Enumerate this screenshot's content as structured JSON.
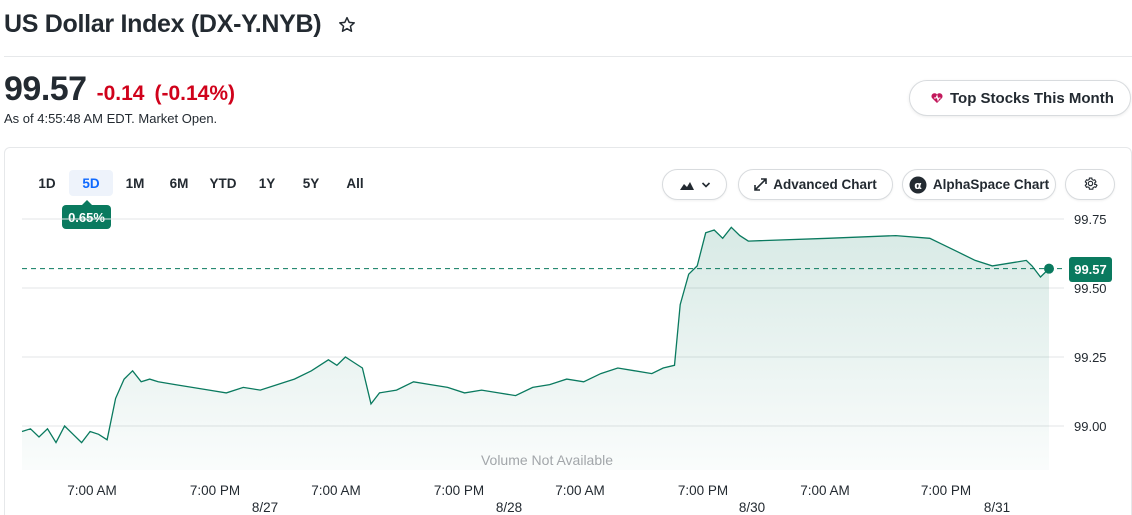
{
  "header": {
    "title": "US Dollar Index (DX-Y.NYB)",
    "watch_icon": "star-outline-icon"
  },
  "quote": {
    "price": "99.57",
    "change": "-0.14",
    "change_pct": "(-0.14%)",
    "as_of": "As of 4:55:48 AM EDT. Market Open.",
    "change_color": "#d0021b"
  },
  "promo": {
    "label": "Top Stocks This Month",
    "icon": "heart-spark-icon"
  },
  "chart_toolbar": {
    "ranges": [
      "1D",
      "5D",
      "1M",
      "6M",
      "YTD",
      "1Y",
      "5Y",
      "All"
    ],
    "selected_range": "5D",
    "range_change": "0.65%",
    "chart_type_icon": "mountain-chart-icon",
    "advanced_chart_label": "Advanced Chart",
    "alphaspace_chart_label": "AlphaSpace Chart",
    "settings_icon": "gear-icon"
  },
  "chart_data": {
    "type": "area",
    "y_ticks": [
      "99.75",
      "99.50",
      "99.25",
      "99.00"
    ],
    "ylim": [
      98.85,
      99.77
    ],
    "x_time_labels": [
      "7:00 AM",
      "7:00 PM",
      "7:00 AM",
      "7:00 PM",
      "7:00 AM",
      "7:00 PM",
      "7:00 AM",
      "7:00 PM"
    ],
    "x_date_labels": [
      "8/27",
      "8/28",
      "8/30",
      "8/31"
    ],
    "last_value": "99.57",
    "previous_close_line": 99.57,
    "volume_note": "Volume Not Available",
    "line_color": "#0a7a5f",
    "grid": true,
    "series": [
      {
        "points": [
          [
            0,
            98.98
          ],
          [
            1.5,
            98.99
          ],
          [
            3,
            98.96
          ],
          [
            4.5,
            98.99
          ],
          [
            6,
            98.94
          ],
          [
            7.5,
            99.0
          ],
          [
            9,
            98.97
          ],
          [
            10.5,
            98.94
          ],
          [
            12,
            98.98
          ],
          [
            13.5,
            98.97
          ],
          [
            15,
            98.95
          ],
          [
            16.5,
            99.1
          ],
          [
            18,
            99.17
          ],
          [
            19.5,
            99.2
          ],
          [
            21,
            99.16
          ],
          [
            22.5,
            99.17
          ],
          [
            24,
            99.16
          ],
          [
            27,
            99.15
          ],
          [
            30,
            99.14
          ],
          [
            33,
            99.13
          ],
          [
            36,
            99.12
          ],
          [
            39,
            99.14
          ],
          [
            42,
            99.13
          ],
          [
            45,
            99.15
          ],
          [
            48,
            99.17
          ],
          [
            51,
            99.2
          ],
          [
            54,
            99.24
          ],
          [
            55.5,
            99.22
          ],
          [
            57,
            99.25
          ],
          [
            58.5,
            99.23
          ],
          [
            60,
            99.21
          ],
          [
            61.5,
            99.08
          ],
          [
            63,
            99.12
          ],
          [
            66,
            99.13
          ],
          [
            69,
            99.16
          ],
          [
            72,
            99.15
          ],
          [
            75,
            99.14
          ],
          [
            78,
            99.12
          ],
          [
            81,
            99.13
          ],
          [
            84,
            99.12
          ],
          [
            87,
            99.11
          ],
          [
            90,
            99.14
          ],
          [
            93,
            99.15
          ],
          [
            96,
            99.17
          ],
          [
            99,
            99.16
          ],
          [
            102,
            99.19
          ],
          [
            105,
            99.21
          ],
          [
            108,
            99.2
          ],
          [
            111,
            99.19
          ],
          [
            113,
            99.21
          ],
          [
            115,
            99.22
          ],
          [
            116,
            99.44
          ],
          [
            117.5,
            99.55
          ],
          [
            119,
            99.58
          ],
          [
            120.5,
            99.7
          ],
          [
            122,
            99.71
          ],
          [
            123.5,
            99.68
          ],
          [
            125,
            99.72
          ],
          [
            126.5,
            99.69
          ],
          [
            128,
            99.67
          ],
          [
            142,
            99.68
          ],
          [
            154,
            99.69
          ],
          [
            160,
            99.68
          ],
          [
            162,
            99.66
          ],
          [
            165,
            99.63
          ],
          [
            168,
            99.6
          ],
          [
            171,
            99.58
          ],
          [
            174,
            99.59
          ],
          [
            177,
            99.6
          ],
          [
            178,
            99.58
          ],
          [
            179.5,
            99.54
          ],
          [
            181,
            99.57
          ]
        ]
      }
    ]
  }
}
